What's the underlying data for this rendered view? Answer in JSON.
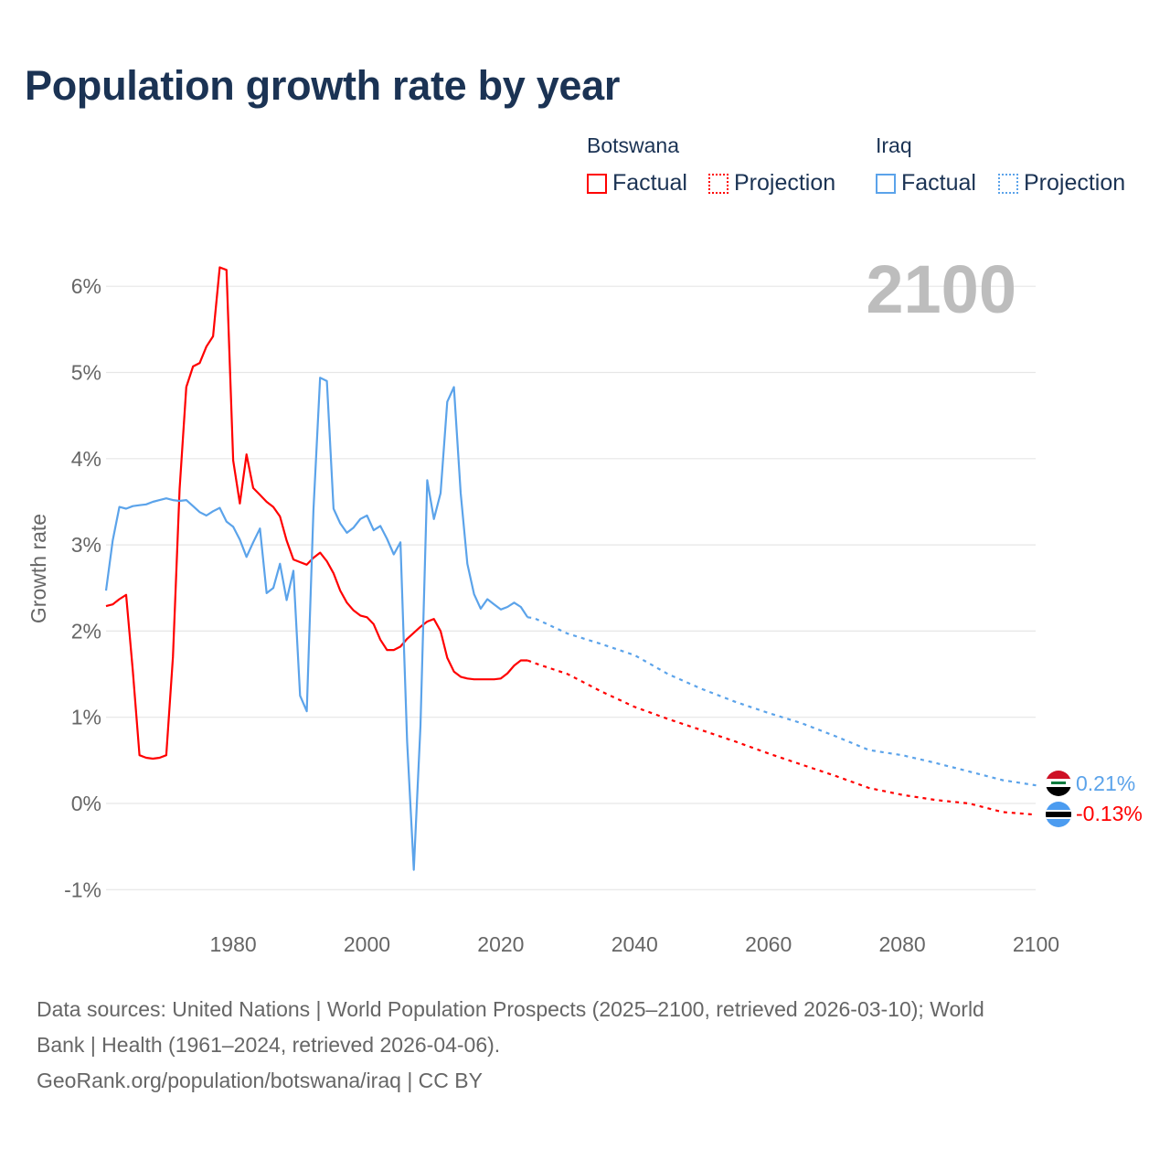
{
  "title": "Population growth rate by year",
  "legend": {
    "groups": [
      {
        "country": "Botswana",
        "factual": "Factual",
        "projection": "Projection",
        "color": "#ff0000"
      },
      {
        "country": "Iraq",
        "factual": "Factual",
        "projection": "Projection",
        "color": "#5ba3ea"
      }
    ]
  },
  "year_display": "2100",
  "end_labels": {
    "iraq": "0.21%",
    "botswana": "-0.13%"
  },
  "footer": {
    "line1": "Data sources: United Nations | World Population Prospects (2025–2100, retrieved 2026-03-10); World",
    "line2": "Bank | Health (1961–2024, retrieved 2026-04-06).",
    "line3": "GeoRank.org/population/botswana/iraq | CC BY"
  },
  "chart_data": {
    "type": "line",
    "title": "Population growth rate by year",
    "xlabel": "",
    "ylabel": "Growth rate",
    "xlim": [
      1961,
      2100
    ],
    "ylim": [
      -1.4,
      6.8
    ],
    "x_ticks": [
      1980,
      2000,
      2020,
      2040,
      2060,
      2080,
      2100
    ],
    "x_tick_labels": [
      "1980",
      "2000",
      "2020",
      "2040",
      "2060",
      "2080",
      "2100"
    ],
    "y_ticks": [
      -1,
      0,
      1,
      2,
      3,
      4,
      5,
      6
    ],
    "y_tick_labels": [
      "-1%",
      "0%",
      "1%",
      "2%",
      "3%",
      "4%",
      "5%",
      "6%"
    ],
    "grid": true,
    "legend_position": "top-right",
    "series": [
      {
        "name": "Botswana Factual",
        "color": "#ff0000",
        "style": "solid",
        "x": [
          1961,
          1962,
          1963,
          1964,
          1965,
          1966,
          1967,
          1968,
          1969,
          1970,
          1971,
          1972,
          1973,
          1974,
          1975,
          1976,
          1977,
          1978,
          1979,
          1980,
          1981,
          1982,
          1983,
          1984,
          1985,
          1986,
          1987,
          1988,
          1989,
          1990,
          1991,
          1992,
          1993,
          1994,
          1995,
          1996,
          1997,
          1998,
          1999,
          2000,
          2001,
          2002,
          2003,
          2004,
          2005,
          2006,
          2007,
          2008,
          2009,
          2010,
          2011,
          2012,
          2013,
          2014,
          2015,
          2016,
          2017,
          2018,
          2019,
          2020,
          2021,
          2022,
          2023,
          2024
        ],
        "y": [
          2.29,
          2.31,
          2.37,
          2.42,
          1.54,
          0.56,
          0.53,
          0.52,
          0.53,
          0.56,
          1.7,
          3.65,
          4.83,
          5.07,
          5.11,
          5.3,
          5.42,
          6.22,
          6.19,
          3.98,
          3.48,
          4.05,
          3.66,
          3.58,
          3.5,
          3.44,
          3.33,
          3.05,
          2.83,
          2.8,
          2.77,
          2.85,
          2.91,
          2.81,
          2.67,
          2.47,
          2.33,
          2.24,
          2.18,
          2.16,
          2.08,
          1.9,
          1.78,
          1.78,
          1.82,
          1.91,
          1.98,
          2.05,
          2.11,
          2.14,
          2.0,
          1.69,
          1.53,
          1.47,
          1.45,
          1.44,
          1.44,
          1.44,
          1.44,
          1.45,
          1.51,
          1.6,
          1.66,
          1.66
        ]
      },
      {
        "name": "Botswana Projection",
        "color": "#ff0000",
        "style": "dotted",
        "x": [
          2024,
          2025,
          2030,
          2035,
          2040,
          2045,
          2050,
          2055,
          2060,
          2065,
          2070,
          2075,
          2080,
          2085,
          2090,
          2095,
          2100
        ],
        "y": [
          1.66,
          1.63,
          1.5,
          1.3,
          1.12,
          0.98,
          0.85,
          0.72,
          0.58,
          0.45,
          0.32,
          0.18,
          0.1,
          0.04,
          0.0,
          -0.1,
          -0.13
        ]
      },
      {
        "name": "Iraq Factual",
        "color": "#5ba3ea",
        "style": "solid",
        "x": [
          1961,
          1962,
          1963,
          1964,
          1965,
          1966,
          1967,
          1968,
          1969,
          1970,
          1971,
          1972,
          1973,
          1974,
          1975,
          1976,
          1977,
          1978,
          1979,
          1980,
          1981,
          1982,
          1983,
          1984,
          1985,
          1986,
          1987,
          1988,
          1989,
          1990,
          1991,
          1992,
          1993,
          1994,
          1995,
          1996,
          1997,
          1998,
          1999,
          2000,
          2001,
          2002,
          2003,
          2004,
          2005,
          2006,
          2007,
          2008,
          2009,
          2010,
          2011,
          2012,
          2013,
          2014,
          2015,
          2016,
          2017,
          2018,
          2019,
          2020,
          2021,
          2022,
          2023,
          2024
        ],
        "y": [
          2.47,
          3.05,
          3.44,
          3.42,
          3.45,
          3.46,
          3.47,
          3.5,
          3.52,
          3.54,
          3.52,
          3.51,
          3.52,
          3.45,
          3.38,
          3.34,
          3.39,
          3.43,
          3.27,
          3.21,
          3.06,
          2.86,
          3.03,
          3.19,
          2.44,
          2.5,
          2.78,
          2.36,
          2.7,
          1.25,
          1.07,
          3.4,
          4.94,
          4.9,
          3.42,
          3.25,
          3.14,
          3.2,
          3.3,
          3.34,
          3.17,
          3.22,
          3.07,
          2.89,
          3.03,
          0.72,
          -0.77,
          0.9,
          3.75,
          3.3,
          3.6,
          4.66,
          4.83,
          3.6,
          2.78,
          2.43,
          2.26,
          2.37,
          2.31,
          2.25,
          2.28,
          2.33,
          2.28,
          2.16
        ]
      },
      {
        "name": "Iraq Projection",
        "color": "#5ba3ea",
        "style": "dotted",
        "x": [
          2024,
          2025,
          2030,
          2035,
          2040,
          2045,
          2050,
          2055,
          2060,
          2065,
          2070,
          2075,
          2080,
          2085,
          2090,
          2095,
          2100
        ],
        "y": [
          2.16,
          2.15,
          1.97,
          1.85,
          1.72,
          1.5,
          1.33,
          1.18,
          1.05,
          0.93,
          0.78,
          0.62,
          0.56,
          0.47,
          0.37,
          0.27,
          0.21
        ]
      }
    ]
  }
}
